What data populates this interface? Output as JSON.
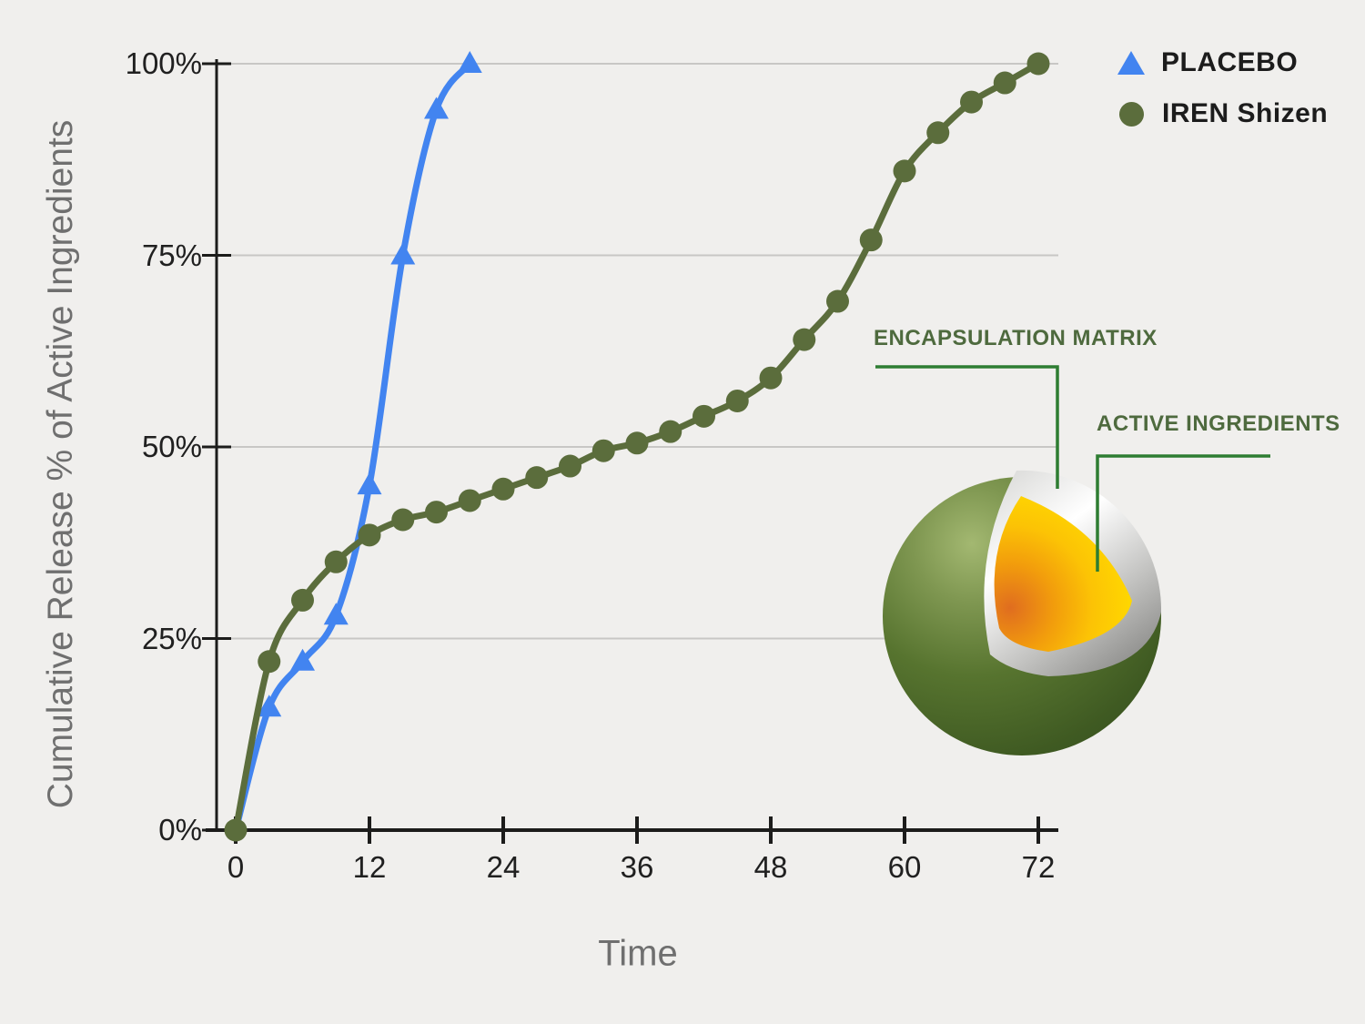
{
  "background_color": "#f0efed",
  "chart_data": {
    "type": "line",
    "title": "",
    "xlabel": "Time",
    "ylabel": "Cumulative Release % of Active Ingredients",
    "xlim": [
      0,
      72
    ],
    "ylim": [
      0,
      100
    ],
    "grid": "horizontal",
    "legend_position": "top-right",
    "xticks": {
      "values": [
        0,
        12,
        24,
        36,
        48,
        60,
        72
      ],
      "labels": [
        "0",
        "12",
        "24",
        "36",
        "48",
        "60",
        "72"
      ]
    },
    "yticks": {
      "values": [
        0,
        25,
        50,
        75,
        100
      ],
      "labels": [
        "0%",
        "25%",
        "50%",
        "75%",
        "100%"
      ]
    },
    "series": [
      {
        "name": "PLACEBO",
        "color": "#4284f0",
        "marker": "triangle",
        "show_first_marker": false,
        "x": [
          0,
          3,
          6,
          9,
          12,
          15,
          18,
          21
        ],
        "y": [
          0,
          16,
          22,
          28,
          45,
          75,
          94,
          100
        ]
      },
      {
        "name": "IREN Shizen",
        "color": "#5b6d3c",
        "marker": "circle",
        "show_first_marker": true,
        "x": [
          0,
          3,
          6,
          9,
          12,
          15,
          18,
          21,
          24,
          27,
          30,
          33,
          36,
          39,
          42,
          45,
          48,
          51,
          54,
          57,
          60,
          63,
          66,
          69,
          72
        ],
        "y": [
          0,
          22,
          30,
          35,
          38.5,
          40.5,
          41.5,
          43,
          44.5,
          46,
          47.5,
          49.5,
          50.5,
          52,
          54,
          56,
          59,
          64,
          69,
          77,
          86,
          91,
          95,
          97.5,
          100
        ]
      }
    ]
  },
  "illustration": {
    "callouts": [
      {
        "label": "ENCAPSULATION MATRIX"
      },
      {
        "label": "ACTIVE INGREDIENTS"
      }
    ],
    "colors": {
      "shell_green": "#57742f",
      "rim_silver": "#ffffff",
      "core_yellow": "#ffda00",
      "core_orange": "#e06d1f",
      "callout_line": "#2e7d32",
      "callout_text": "#4e6a3e"
    }
  }
}
